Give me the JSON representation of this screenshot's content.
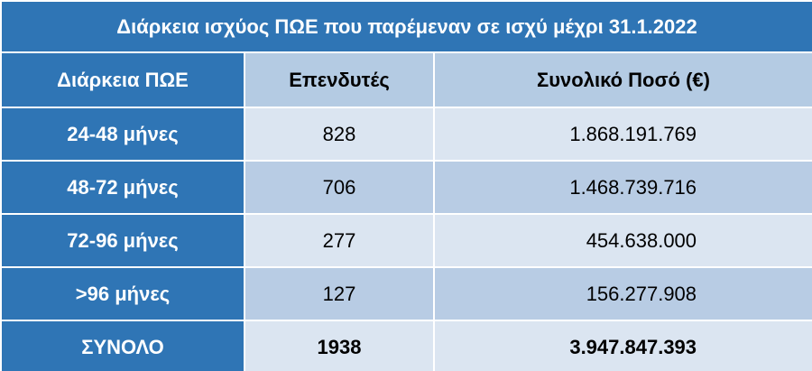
{
  "table": {
    "title": "Διάρκεια ισχύος ΠΩΕ που παρέμεναν σε ισχύ μέχρι 31.1.2022",
    "header": [
      "Διάρκεια ΠΩΕ",
      "Επενδυτές",
      "Συνολικό Ποσό (€)"
    ],
    "rows": [
      [
        "24-48 μήνες",
        "828",
        "1.868.191.769"
      ],
      [
        "48-72 μήνες",
        "706",
        "1.468.739.716"
      ],
      [
        "72-96 μήνες",
        "277",
        "454.638.000"
      ],
      [
        ">96 μήνες",
        "127",
        "156.277.908"
      ]
    ],
    "total": [
      "ΣΥΝΟΛΟ",
      "1938",
      "3.947.847.393"
    ]
  }
}
